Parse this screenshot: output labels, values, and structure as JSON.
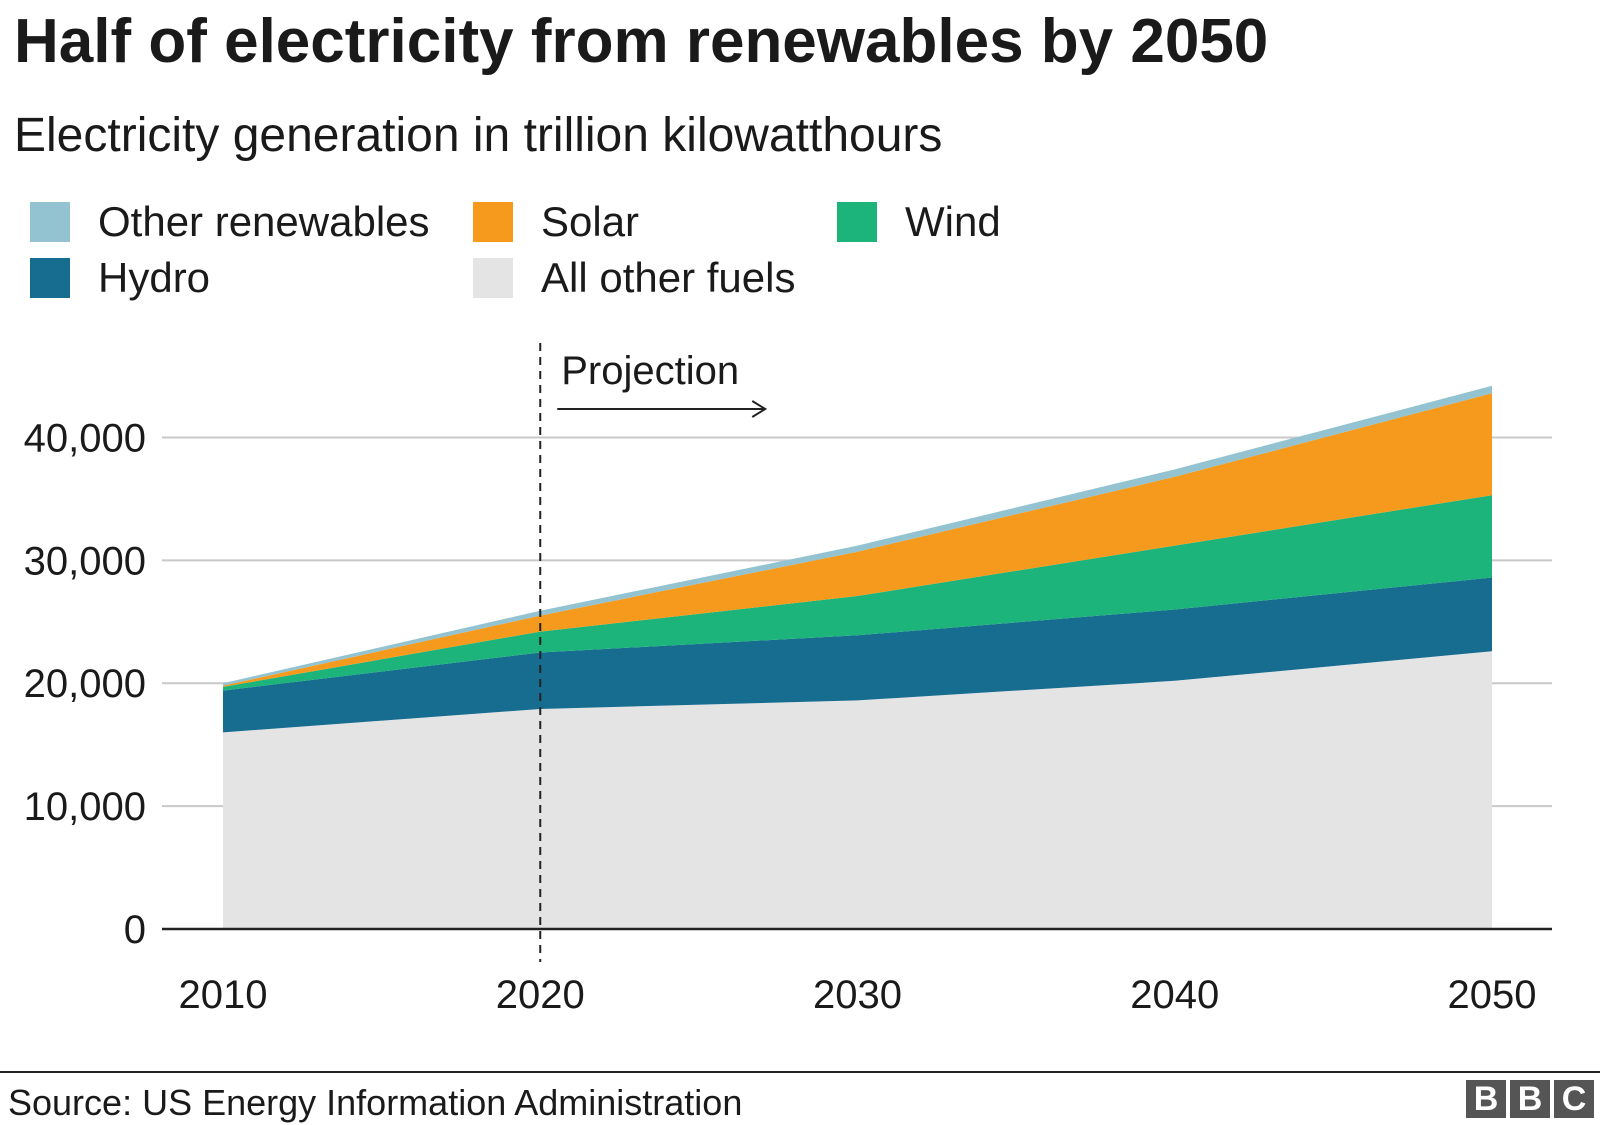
{
  "chart_data": {
    "type": "area",
    "stacked": true,
    "title": "Half of electricity from renewables by 2050",
    "subtitle": "Electricity generation in trillion kilowatthours",
    "x": [
      2010,
      2020,
      2030,
      2040,
      2050
    ],
    "xlim": [
      2010,
      2050
    ],
    "ylim": [
      0,
      45000
    ],
    "yticks": [
      0,
      10000,
      20000,
      30000,
      40000
    ],
    "ytick_labels": [
      "0",
      "10,000",
      "20,000",
      "30,000",
      "40,000"
    ],
    "xticks": [
      2010,
      2020,
      2030,
      2040,
      2050
    ],
    "xtick_labels": [
      "2010",
      "2020",
      "2030",
      "2040",
      "2050"
    ],
    "grid": true,
    "series": [
      {
        "name": "All other fuels",
        "color": "#e4e4e4",
        "values": [
          16000,
          17900,
          18600,
          20200,
          22600
        ]
      },
      {
        "name": "Hydro",
        "color": "#176d8f",
        "values": [
          3400,
          4600,
          5300,
          5800,
          6000
        ]
      },
      {
        "name": "Wind",
        "color": "#1cb47a",
        "values": [
          300,
          1700,
          3200,
          5200,
          6700
        ]
      },
      {
        "name": "Solar",
        "color": "#f59a1c",
        "values": [
          100,
          1300,
          3600,
          5600,
          8300
        ]
      },
      {
        "name": "Other renewables",
        "color": "#93c3d0",
        "values": [
          200,
          400,
          500,
          600,
          600
        ]
      }
    ],
    "legend": [
      {
        "name": "Other renewables",
        "color": "#93c3d0"
      },
      {
        "name": "Solar",
        "color": "#f59a1c"
      },
      {
        "name": "Wind",
        "color": "#1cb47a"
      },
      {
        "name": "Hydro",
        "color": "#176d8f"
      },
      {
        "name": "All other fuels",
        "color": "#e4e4e4"
      }
    ],
    "annotations": [
      {
        "type": "vline",
        "x": 2020,
        "label": "Projection",
        "arrow": "right"
      }
    ]
  },
  "footer": {
    "source": "Source: US Energy Information Administration",
    "logo": [
      "B",
      "B",
      "C"
    ]
  }
}
